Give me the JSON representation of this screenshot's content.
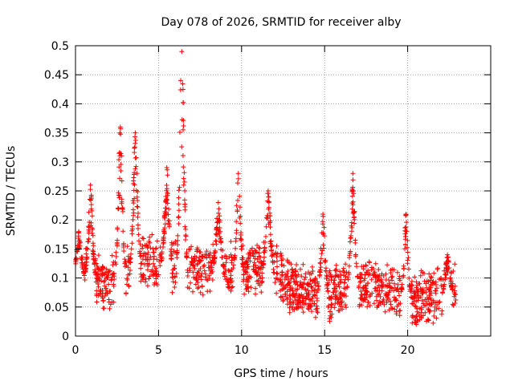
{
  "chart_data": {
    "type": "scatter",
    "title": "Day 078 of 2026, SRMTID for receiver alby",
    "xlabel": "GPS time / hours",
    "ylabel": "SRMTID / TECUs",
    "xlim": [
      0,
      25
    ],
    "ylim": [
      0,
      0.5
    ],
    "xticks": [
      0,
      5,
      10,
      15,
      20
    ],
    "xtick_labels": [
      "0",
      "5",
      "10",
      "15",
      "20"
    ],
    "yticks": [
      0,
      0.05,
      0.1,
      0.15,
      0.2,
      0.25,
      0.3,
      0.35,
      0.4,
      0.45,
      0.5
    ],
    "ytick_labels": [
      "0",
      "0.05",
      "0.1",
      "0.15",
      "0.2",
      "0.25",
      "0.3",
      "0.35",
      "0.4",
      "0.45",
      "0.5"
    ],
    "grid": true,
    "marker": "+",
    "color": "#ff0000",
    "series": [
      {
        "name": "SRMTID",
        "x_range": [
          0,
          22.9
        ],
        "peaks": [
          {
            "x": 0.2,
            "y": 0.18
          },
          {
            "x": 0.9,
            "y": 0.26
          },
          {
            "x": 2.7,
            "y": 0.36
          },
          {
            "x": 3.6,
            "y": 0.35
          },
          {
            "x": 5.5,
            "y": 0.29
          },
          {
            "x": 6.4,
            "y": 0.49
          },
          {
            "x": 8.6,
            "y": 0.23
          },
          {
            "x": 9.8,
            "y": 0.28
          },
          {
            "x": 11.6,
            "y": 0.25
          },
          {
            "x": 14.9,
            "y": 0.21
          },
          {
            "x": 16.7,
            "y": 0.28
          },
          {
            "x": 19.9,
            "y": 0.21
          },
          {
            "x": 22.4,
            "y": 0.14
          }
        ],
        "baseline": [
          {
            "x": 0,
            "y": 0.11
          },
          {
            "x": 2,
            "y": 0.09
          },
          {
            "x": 4,
            "y": 0.13
          },
          {
            "x": 6,
            "y": 0.12
          },
          {
            "x": 8,
            "y": 0.12
          },
          {
            "x": 10,
            "y": 0.11
          },
          {
            "x": 12,
            "y": 0.12
          },
          {
            "x": 13,
            "y": 0.08
          },
          {
            "x": 15,
            "y": 0.07
          },
          {
            "x": 17,
            "y": 0.09
          },
          {
            "x": 19,
            "y": 0.08
          },
          {
            "x": 20,
            "y": 0.06
          },
          {
            "x": 22,
            "y": 0.07
          },
          {
            "x": 22.9,
            "y": 0.08
          }
        ]
      }
    ]
  }
}
